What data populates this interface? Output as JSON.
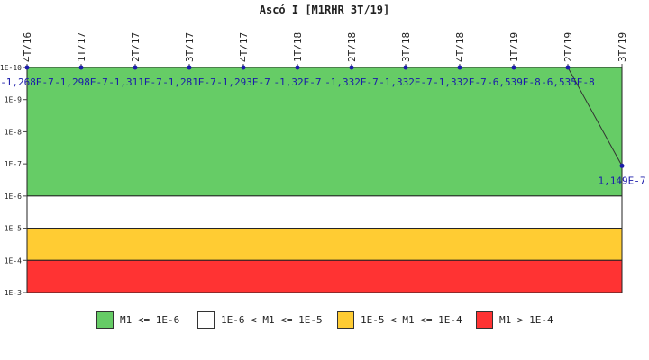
{
  "chart_data": {
    "type": "line",
    "title": "Ascó I [M1RHR 3T/19]",
    "x_categories": [
      "4T/16",
      "1T/17",
      "2T/17",
      "3T/17",
      "4T/17",
      "1T/18",
      "2T/18",
      "3T/18",
      "4T/18",
      "1T/19",
      "2T/19",
      "3T/19"
    ],
    "y_axis": {
      "scale": "log",
      "inverted": true,
      "range": [
        1e-10,
        0.001
      ],
      "tick_labels": [
        "1E-10",
        "1E-9",
        "1E-8",
        "1E-7",
        "1E-6",
        "1E-5",
        "1E-4",
        "1E-3"
      ]
    },
    "series": [
      {
        "values": [
          -1.268e-07,
          -1.298e-07,
          -1.311e-07,
          -1.281e-07,
          -1.293e-07,
          -1.32e-07,
          -1.332e-07,
          -1.332e-07,
          -1.332e-07,
          -6.539e-08,
          -6.535e-08,
          1.149e-07
        ],
        "data_labels": [
          "-1,268E-7",
          "-1,298E-7",
          "-1,311E-7",
          "-1,281E-7",
          "-1,293E-7",
          "-1,32E-7",
          "-1,332E-7",
          "-1,332E-7",
          "-1,332E-7",
          "-6,539E-8",
          "-6,535E-8",
          "1,149E-7"
        ],
        "color": "#1a1aaa"
      }
    ],
    "bands": [
      {
        "label": "M1 <= 1E-6",
        "from": 1e-10,
        "to": 1e-06,
        "color": "#66cc66"
      },
      {
        "label": "1E-6 < M1 <= 1E-5",
        "from": 1e-06,
        "to": 1e-05,
        "color": "#ffffff"
      },
      {
        "label": "1E-5 < M1 <= 1E-4",
        "from": 1e-05,
        "to": 0.0001,
        "color": "#ffcc33"
      },
      {
        "label": "M1 > 1E-4",
        "from": 0.0001,
        "to": 0.001,
        "color": "#ff3333"
      }
    ],
    "legend_position": "bottom"
  }
}
